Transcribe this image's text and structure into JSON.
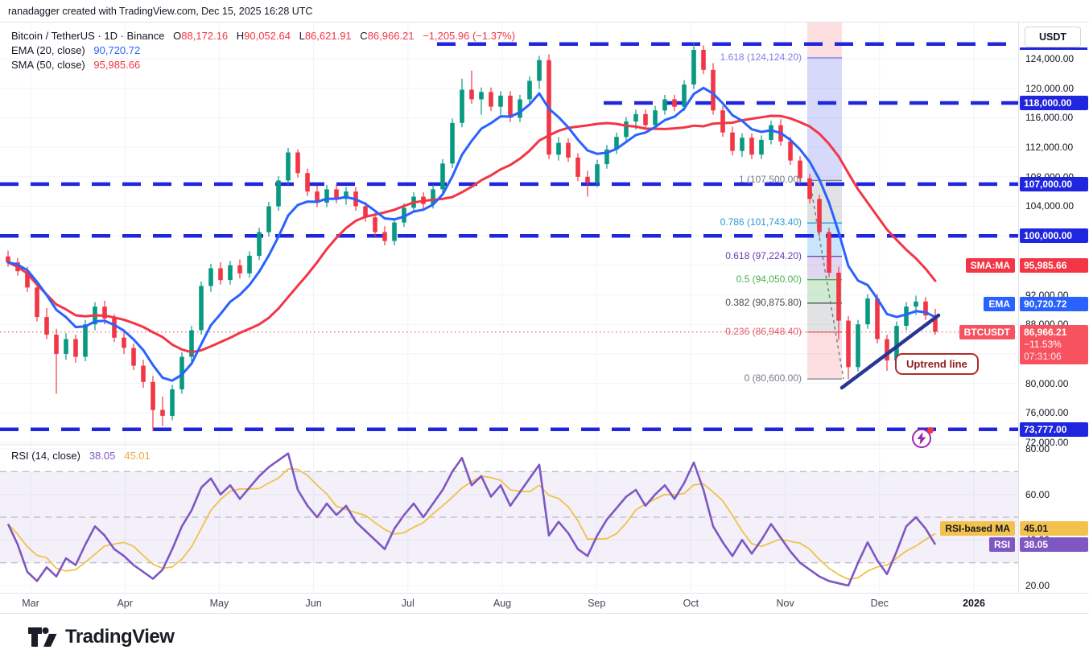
{
  "header": {
    "attribution": "ranadagger created with TradingView.com, Dec 15, 2025 16:28 UTC"
  },
  "legend": {
    "title": "Bitcoin / TetherUS · 1D · Binance",
    "ohlc": [
      {
        "k": "O",
        "v": "88,172.16"
      },
      {
        "k": "H",
        "v": "90,052.64"
      },
      {
        "k": "L",
        "v": "86,621.91"
      },
      {
        "k": "C",
        "v": "86,966.21"
      }
    ],
    "change": "−1,205.96 (−1.37%)",
    "ema": {
      "label": "EMA (20, close)",
      "value": "90,720.72"
    },
    "sma": {
      "label": "SMA (50, close)",
      "value": "95,985.66"
    }
  },
  "price_axis": {
    "currency": "USDT",
    "ticks": [
      {
        "label": "124,000.00",
        "value": 124000
      },
      {
        "label": "120,000.00",
        "value": 120000
      },
      {
        "label": "116,000.00",
        "value": 116000
      },
      {
        "label": "112,000.00",
        "value": 112000
      },
      {
        "label": "108,000.00",
        "value": 108000
      },
      {
        "label": "104,000.00",
        "value": 104000
      },
      {
        "label": "92,000.00",
        "value": 92000
      },
      {
        "label": "88,000.00",
        "value": 88000
      },
      {
        "label": "80,000.00",
        "value": 80000
      },
      {
        "label": "76,000.00",
        "value": 76000
      },
      {
        "label": "72,000.00",
        "value": 72000
      }
    ],
    "badges": [
      {
        "name": "level-badge-118000",
        "label": "118,000.00",
        "value": 118000,
        "bg": "#2026dd"
      },
      {
        "name": "level-badge-107000",
        "label": "107,000.00",
        "value": 107000,
        "bg": "#2026dd"
      },
      {
        "name": "level-badge-100000",
        "label": "100,000.00",
        "value": 100000,
        "bg": "#2026dd"
      },
      {
        "name": "sma-value-badge",
        "left": "SMA:MA",
        "label": "95,985.66",
        "value": 95985.66,
        "bg": "#f23645"
      },
      {
        "name": "ema-value-badge",
        "left": "EMA",
        "label": "90,720.72",
        "value": 90720.72,
        "bg": "#2962ff"
      },
      {
        "name": "last-price-badge",
        "left": "BTCUSDT",
        "lines": [
          "86,966.21",
          "−11.53%",
          "07:31:06"
        ],
        "value": 86966.21,
        "bg": "#f7525f"
      },
      {
        "name": "level-badge-73777",
        "label": "73,777.00",
        "value": 73777,
        "bg": "#2026dd"
      }
    ]
  },
  "price_pane": {
    "hlines": [
      {
        "value": 126000,
        "x_start": 543,
        "color": "#2026dd"
      },
      {
        "value": 118000,
        "x_start": 750,
        "color": "#2026dd"
      },
      {
        "value": 107000,
        "x_start": 0,
        "color": "#2026dd"
      },
      {
        "value": 100000,
        "x_start": 0,
        "color": "#2026dd"
      },
      {
        "value": 73777,
        "x_start": 0,
        "color": "#2026dd"
      }
    ],
    "last_price_line": {
      "value": 86966.21,
      "color": "#f23645"
    }
  },
  "fib": {
    "levels": [
      {
        "label": "1.618 (124,124.20)",
        "value": 124124.2,
        "color": "#7e7fe8"
      },
      {
        "label": "1 (107,500.00)",
        "value": 107500,
        "color": "#787b86"
      },
      {
        "label": "0.786 (101,743.40)",
        "value": 101743.4,
        "color": "#2c9bd4"
      },
      {
        "label": "0.618 (97,224.20)",
        "value": 97224.2,
        "color": "#673ab7"
      },
      {
        "label": "0.5 (94,050.00)",
        "value": 94050,
        "color": "#4caf50"
      },
      {
        "label": "0.382 (90,875.80)",
        "value": 90875.8,
        "color": "#45484f"
      },
      {
        "label": "0.236 (86,948.40)",
        "value": 86948.4,
        "color": "#e5606b"
      },
      {
        "label": "0 (80,600.00)",
        "value": 80600,
        "color": "#787b86"
      }
    ],
    "bands": [
      {
        "from": "top",
        "to": 124124.2,
        "fill": "rgba(242,54,69,0.16)"
      },
      {
        "from": 124124.2,
        "to": 107500,
        "fill": "rgba(98,110,232,0.26)"
      },
      {
        "from": 107500,
        "to": 101743.4,
        "fill": "rgba(120,123,134,0.22)"
      },
      {
        "from": 101743.4,
        "to": 97224.2,
        "fill": "rgba(66,165,245,0.28)"
      },
      {
        "from": 97224.2,
        "to": 94050,
        "fill": "rgba(126,87,194,0.24)"
      },
      {
        "from": 94050,
        "to": 90875.8,
        "fill": "rgba(102,187,106,0.30)"
      },
      {
        "from": 90875.8,
        "to": 86948.4,
        "fill": "rgba(120,123,134,0.22)"
      },
      {
        "from": 86948.4,
        "to": 80600,
        "fill": "rgba(242,54,69,0.16)"
      }
    ]
  },
  "rsi_pane": {
    "legend_label": "RSI (14, close)",
    "rsi_value": "38.05",
    "ma_value": "45.01",
    "ticks": [
      {
        "label": "80.00",
        "value": 80
      },
      {
        "label": "60.00",
        "value": 60
      },
      {
        "label": "40.00",
        "value": 40
      },
      {
        "label": "20.00",
        "value": 20
      }
    ],
    "hlines": [
      70,
      50,
      30
    ],
    "band": [
      30,
      70
    ],
    "badges": [
      {
        "name": "rsi-ma-badge",
        "left": "RSI-based MA",
        "label": "45.01",
        "value": 45.01,
        "bg": "#f2c14e",
        "fg": "#131722"
      },
      {
        "name": "rsi-badge",
        "left": "RSI",
        "label": "38.05",
        "value": 38.05,
        "bg": "#7e57c2",
        "fg": "#ffffff"
      }
    ]
  },
  "time_axis": {
    "labels": [
      "Mar",
      "Apr",
      "May",
      "Jun",
      "Jul",
      "Aug",
      "Sep",
      "Oct",
      "Nov",
      "Dec",
      "2026"
    ]
  },
  "annotations": {
    "uptrend_label": "Uptrend line"
  },
  "logo": {
    "text": "TradingView"
  },
  "chart_data": {
    "type": "candlestick",
    "title": "Bitcoin / TetherUS · 1D · Binance",
    "symbol": "BTCUSDT",
    "interval": "1D",
    "exchange": "Binance",
    "ohlc_last": {
      "open": 88172.16,
      "high": 90052.64,
      "low": 86621.91,
      "close": 86966.21,
      "change": -1205.96,
      "change_pct": -1.37
    },
    "unit_multiplier": 1000,
    "candles_note": "sampled ~3-day OHLC in thousands USDT, Mar 2025 - Dec 15 2025",
    "candles": [
      [
        97.2,
        98.0,
        95.8,
        96.4
      ],
      [
        96.4,
        97.0,
        94.6,
        95.2
      ],
      [
        95.2,
        95.8,
        92.4,
        93.0
      ],
      [
        93.0,
        93.6,
        88.4,
        89.0
      ],
      [
        89.0,
        90.2,
        86.0,
        86.6
      ],
      [
        86.6,
        87.4,
        78.6,
        84.0
      ],
      [
        84.0,
        86.8,
        83.2,
        86.0
      ],
      [
        86.0,
        86.6,
        82.8,
        83.6
      ],
      [
        83.6,
        88.6,
        83.0,
        88.0
      ],
      [
        88.0,
        91.0,
        87.2,
        90.4
      ],
      [
        90.4,
        91.2,
        88.0,
        88.8
      ],
      [
        88.8,
        89.4,
        85.6,
        86.2
      ],
      [
        86.2,
        87.0,
        84.0,
        84.8
      ],
      [
        84.8,
        85.4,
        81.8,
        82.4
      ],
      [
        82.4,
        83.2,
        79.4,
        80.2
      ],
      [
        80.2,
        81.0,
        73.6,
        76.4
      ],
      [
        76.4,
        78.2,
        74.2,
        75.6
      ],
      [
        75.6,
        79.8,
        75.0,
        79.2
      ],
      [
        79.2,
        84.2,
        78.6,
        83.6
      ],
      [
        83.6,
        87.8,
        83.0,
        87.2
      ],
      [
        87.2,
        93.8,
        86.6,
        93.2
      ],
      [
        93.2,
        96.2,
        92.4,
        95.6
      ],
      [
        95.6,
        96.4,
        93.4,
        94.0
      ],
      [
        94.0,
        96.6,
        93.4,
        96.0
      ],
      [
        96.0,
        96.8,
        94.2,
        94.9
      ],
      [
        94.9,
        97.9,
        94.3,
        97.3
      ],
      [
        97.3,
        101.1,
        96.7,
        100.5
      ],
      [
        100.5,
        104.6,
        99.9,
        104.0
      ],
      [
        104.0,
        108.1,
        103.4,
        107.5
      ],
      [
        107.5,
        111.9,
        106.9,
        111.3
      ],
      [
        111.3,
        111.7,
        107.9,
        108.5
      ],
      [
        108.5,
        109.1,
        105.4,
        106.0
      ],
      [
        106.0,
        106.8,
        103.9,
        104.5
      ],
      [
        104.5,
        106.9,
        103.9,
        106.3
      ],
      [
        106.3,
        107.0,
        104.4,
        105.0
      ],
      [
        105.0,
        106.6,
        104.2,
        106.0
      ],
      [
        106.0,
        106.6,
        103.4,
        104.0
      ],
      [
        104.0,
        104.6,
        101.9,
        102.5
      ],
      [
        102.5,
        103.1,
        99.9,
        100.5
      ],
      [
        100.5,
        101.3,
        98.7,
        99.3
      ],
      [
        99.3,
        102.4,
        98.7,
        101.8
      ],
      [
        101.8,
        104.4,
        101.2,
        103.8
      ],
      [
        103.8,
        105.9,
        103.2,
        105.3
      ],
      [
        105.3,
        105.9,
        103.7,
        104.3
      ],
      [
        104.3,
        106.9,
        103.7,
        106.3
      ],
      [
        106.3,
        110.4,
        105.7,
        109.8
      ],
      [
        109.8,
        115.9,
        109.2,
        115.3
      ],
      [
        115.3,
        121.3,
        114.7,
        119.8
      ],
      [
        119.8,
        122.4,
        117.9,
        118.5
      ],
      [
        118.5,
        120.1,
        116.4,
        119.5
      ],
      [
        119.5,
        120.1,
        116.9,
        117.5
      ],
      [
        117.5,
        119.6,
        116.4,
        119.0
      ],
      [
        119.0,
        119.6,
        115.4,
        116.0
      ],
      [
        116.0,
        119.1,
        115.4,
        118.5
      ],
      [
        118.5,
        121.6,
        117.9,
        121.0
      ],
      [
        121.0,
        124.4,
        119.9,
        123.8
      ],
      [
        123.8,
        124.6,
        110.4,
        111.0
      ],
      [
        111.0,
        113.4,
        110.2,
        112.6
      ],
      [
        112.6,
        113.2,
        110.0,
        110.6
      ],
      [
        110.6,
        111.2,
        107.4,
        108.0
      ],
      [
        108.0,
        108.8,
        105.3,
        107.2
      ],
      [
        107.2,
        110.3,
        106.6,
        109.7
      ],
      [
        109.7,
        112.3,
        109.1,
        111.7
      ],
      [
        111.7,
        114.0,
        111.1,
        113.4
      ],
      [
        113.4,
        116.1,
        112.8,
        115.5
      ],
      [
        115.5,
        117.1,
        114.4,
        116.5
      ],
      [
        116.5,
        117.1,
        114.4,
        115.0
      ],
      [
        115.0,
        117.6,
        114.4,
        117.0
      ],
      [
        117.0,
        119.1,
        116.4,
        118.5
      ],
      [
        118.5,
        119.1,
        116.9,
        117.5
      ],
      [
        117.5,
        121.1,
        116.9,
        120.5
      ],
      [
        120.5,
        126.2,
        119.9,
        125.2
      ],
      [
        125.2,
        125.8,
        121.9,
        122.5
      ],
      [
        122.5,
        123.4,
        116.4,
        117.0
      ],
      [
        117.0,
        117.6,
        113.4,
        114.0
      ],
      [
        114.0,
        114.8,
        110.9,
        111.5
      ],
      [
        111.5,
        113.9,
        110.7,
        113.3
      ],
      [
        113.3,
        113.9,
        110.4,
        111.0
      ],
      [
        111.0,
        113.6,
        110.4,
        113.0
      ],
      [
        113.0,
        115.6,
        112.4,
        115.0
      ],
      [
        115.0,
        115.8,
        112.2,
        112.8
      ],
      [
        112.8,
        113.4,
        109.6,
        110.2
      ],
      [
        110.2,
        110.8,
        107.2,
        107.8
      ],
      [
        107.8,
        108.4,
        104.4,
        105.0
      ],
      [
        105.0,
        105.6,
        99.9,
        100.5
      ],
      [
        100.5,
        101.1,
        94.4,
        95.0
      ],
      [
        95.0,
        95.8,
        85.9,
        88.5
      ],
      [
        88.5,
        89.1,
        80.6,
        82.2
      ],
      [
        82.2,
        88.6,
        81.6,
        88.0
      ],
      [
        88.0,
        92.1,
        87.4,
        91.5
      ],
      [
        91.5,
        92.1,
        85.4,
        86.0
      ],
      [
        86.0,
        86.6,
        81.7,
        83.1
      ],
      [
        83.1,
        88.4,
        82.5,
        87.8
      ],
      [
        87.8,
        91.0,
        87.2,
        90.4
      ],
      [
        90.4,
        91.9,
        89.3,
        91.1
      ],
      [
        91.1,
        91.7,
        88.6,
        89.2
      ],
      [
        89.2,
        90.1,
        86.6,
        87.0
      ]
    ],
    "overlays": [
      {
        "name": "EMA (20, close)",
        "last_value": 90720.72,
        "color": "#2962ff"
      },
      {
        "name": "SMA (50, close)",
        "last_value": 95985.66,
        "color": "#f23645"
      }
    ],
    "indicator": {
      "name": "RSI (14, close)",
      "last_value": 38.05,
      "ma_last_value": 45.01,
      "values": [
        47,
        38,
        26,
        22,
        28,
        24,
        32,
        29,
        38,
        46,
        42,
        36,
        33,
        29,
        26,
        23,
        27,
        36,
        46,
        53,
        63,
        67,
        60,
        64,
        58,
        63,
        68,
        72,
        75,
        78,
        62,
        55,
        50,
        56,
        51,
        55,
        48,
        44,
        40,
        36,
        45,
        51,
        56,
        50,
        56,
        62,
        70,
        76,
        64,
        68,
        59,
        64,
        55,
        61,
        67,
        73,
        42,
        48,
        43,
        36,
        33,
        42,
        49,
        54,
        59,
        62,
        55,
        60,
        64,
        58,
        65,
        74,
        62,
        46,
        39,
        33,
        40,
        34,
        40,
        47,
        41,
        35,
        30,
        27,
        24,
        22,
        21,
        20,
        30,
        39,
        31,
        25,
        35,
        46,
        50,
        45,
        38
      ]
    },
    "fib_retracement": {
      "p0": 80600,
      "p1": 107500,
      "ext_1618": 124124.2
    },
    "horizontal_levels": [
      126000,
      118000,
      107000,
      100000,
      73777
    ],
    "uptrend_line": {
      "label": "Uptrend line"
    },
    "ylim": [
      72000,
      127000
    ],
    "rsi_ylim": [
      15,
      85
    ],
    "xticks": [
      "Mar",
      "Apr",
      "May",
      "Jun",
      "Jul",
      "Aug",
      "Sep",
      "Oct",
      "Nov",
      "Dec",
      "2026"
    ]
  }
}
